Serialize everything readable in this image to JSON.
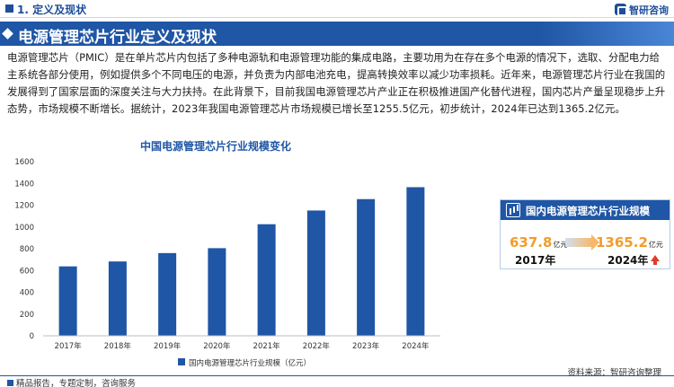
{
  "header": {
    "section": "1. 定义及现状",
    "brand": "智研咨询"
  },
  "title": "电源管理芯片行业定义及现状",
  "paragraph": "电源管理芯片（PMIC）是在单片芯片内包括了多种电源轨和电源管理功能的集成电路，主要功用为在存在多个电源的情况下，选取、分配电力给主系统各部分使用，例如提供多个不同电压的电源，并负责为内部电池充电，提高转换效率以减少功率损耗。近年来，电源管理芯片行业在我国的发展得到了国家层面的深度关注与大力扶持。在此背景下，目前我国电源管理芯片产业正在积极推进国产化替代进程，国内芯片产量呈现稳步上升态势，市场规模不断增长。据统计，2023年我国电源管理芯片市场规模已增长至1255.5亿元，初步统计，2024年已达到1365.2亿元。",
  "card": {
    "title": "国内电源管理芯片行业规模",
    "left_value": "637.8",
    "left_unit": "亿元",
    "left_year": "2017年",
    "right_value": "1365.2",
    "right_unit": "亿元",
    "right_year": "2024年"
  },
  "footer": {
    "left": "精品报告，专题定制，咨询服务",
    "right": "资料来源：智研咨询整理"
  },
  "colors": {
    "bar": "#1f56a5",
    "accent": "#f39c2b",
    "up": "#e03a2e"
  },
  "chart_data": {
    "type": "bar",
    "title": "中国电源管理芯片行业规模变化",
    "categories": [
      "2017年",
      "2018年",
      "2019年",
      "2020年",
      "2021年",
      "2022年",
      "2023年",
      "2024年"
    ],
    "series": [
      {
        "name": "国内电源管理芯片行业规模（亿元）",
        "values": [
          637.8,
          683,
          760,
          805,
          1025,
          1151,
          1255.5,
          1365.2
        ]
      }
    ],
    "y_ticks": [
      "0",
      "200",
      "400",
      "600",
      "800",
      "1000",
      "1200",
      "1400",
      "1600"
    ],
    "ylim": [
      0,
      1600
    ],
    "grid": false,
    "legend": "bottom"
  }
}
